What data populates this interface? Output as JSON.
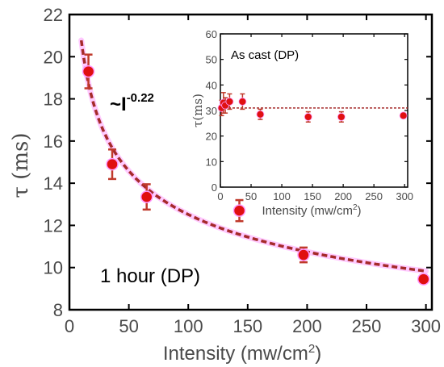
{
  "chart_data": [
    {
      "type": "scatter",
      "xlabel_main": "Intensity (mw/cm",
      "xlabel_sup": "2",
      "xlabel_tail": ")",
      "ylabel": "τ (ms)",
      "xlim": [
        0,
        305
      ],
      "ylim": [
        8,
        22
      ],
      "xticks": [
        0,
        50,
        100,
        150,
        200,
        250,
        300
      ],
      "yticks": [
        8,
        10,
        12,
        14,
        16,
        18,
        20,
        22
      ],
      "annotation": "1 hour (DP)",
      "fit_label_base": "~I",
      "fit_label_exp": "-0.22",
      "series": [
        {
          "points": [
            {
              "x": 16,
              "y": 19.3,
              "err": 0.8
            },
            {
              "x": 36,
              "y": 14.9,
              "err": 0.7
            },
            {
              "x": 65,
              "y": 13.35,
              "err": 0.6
            },
            {
              "x": 143,
              "y": 12.7,
              "err": 0.5
            },
            {
              "x": 197,
              "y": 10.6,
              "err": 0.35
            },
            {
              "x": 298,
              "y": 9.45,
              "err": 0.15
            }
          ],
          "color": "#e01010"
        }
      ],
      "fit": {
        "type": "power",
        "exponent": -0.22,
        "x_range": [
          10,
          300
        ],
        "color": "#a52a2a",
        "glow": "#ff66ff"
      }
    },
    {
      "type": "scatter",
      "inset": true,
      "title": "As cast (DP)",
      "xlabel_main": "Intensity (mw/cm",
      "xlabel_sup": "2",
      "xlabel_tail": ")",
      "ylabel": "τ(ms)",
      "xlim": [
        0,
        305
      ],
      "ylim": [
        0,
        60
      ],
      "xticks": [
        0,
        50,
        100,
        150,
        200,
        250,
        300
      ],
      "yticks": [
        0,
        10,
        20,
        30,
        40,
        50,
        60
      ],
      "series": [
        {
          "points": [
            {
              "x": 2,
              "y": 31,
              "err": 3
            },
            {
              "x": 5,
              "y": 33,
              "err": 4
            },
            {
              "x": 8,
              "y": 32,
              "err": 3
            },
            {
              "x": 15,
              "y": 33.5,
              "err": 3
            },
            {
              "x": 36,
              "y": 33.5,
              "err": 3
            },
            {
              "x": 65,
              "y": 28.5,
              "err": 2
            },
            {
              "x": 143,
              "y": 27.5,
              "err": 2
            },
            {
              "x": 197,
              "y": 27.5,
              "err": 2
            },
            {
              "x": 298,
              "y": 28,
              "err": 1
            }
          ],
          "color": "#e01010"
        }
      ],
      "hline": {
        "y": 31,
        "color": "#a52a2a"
      }
    }
  ]
}
